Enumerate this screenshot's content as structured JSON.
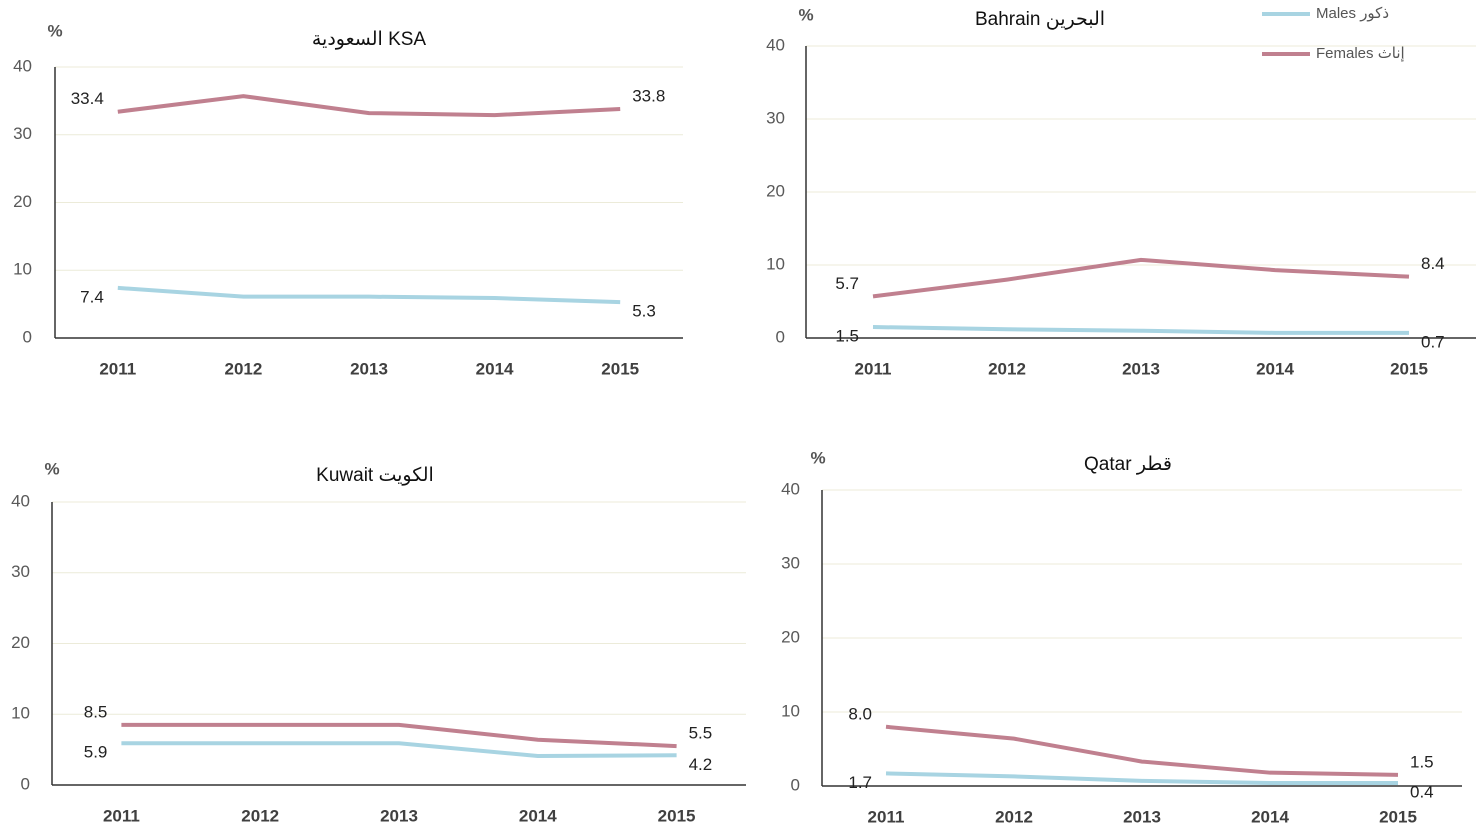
{
  "chart_data": [
    {
      "type": "line",
      "title": "السعودية KSA",
      "y_label": "%",
      "categories": [
        "2011",
        "2012",
        "2013",
        "2014",
        "2015"
      ],
      "series": [
        {
          "name": "Males ذكور",
          "color": "#a8d4e2",
          "values": [
            7.4,
            6.1,
            6.1,
            5.9,
            5.3
          ],
          "value_labels": [
            "7.4",
            null,
            null,
            null,
            "5.3"
          ]
        },
        {
          "name": "Females إناث",
          "color": "#c0808f",
          "values": [
            33.4,
            35.7,
            33.2,
            32.9,
            33.8
          ],
          "value_labels": [
            "33.4",
            null,
            null,
            null,
            "33.8"
          ]
        }
      ],
      "ylim": [
        0,
        40
      ],
      "yticks": [
        0,
        10,
        20,
        30,
        40
      ],
      "grid": true
    },
    {
      "type": "line",
      "title": "Bahrain البحرين",
      "y_label": "%",
      "categories": [
        "2011",
        "2012",
        "2013",
        "2014",
        "2015"
      ],
      "series": [
        {
          "name": "Males ذكور",
          "color": "#a8d4e2",
          "values": [
            1.5,
            1.2,
            1.0,
            0.7,
            0.7
          ],
          "value_labels": [
            "1.5",
            null,
            null,
            null,
            "0.7"
          ]
        },
        {
          "name": "Females إناث",
          "color": "#c0808f",
          "values": [
            5.7,
            8.0,
            10.7,
            9.3,
            8.4
          ],
          "value_labels": [
            "5.7",
            null,
            null,
            null,
            "8.4"
          ]
        }
      ],
      "ylim": [
        0,
        40
      ],
      "yticks": [
        0,
        10,
        20,
        30,
        40
      ],
      "grid": true,
      "legend": "upper right"
    },
    {
      "type": "line",
      "title": "Kuwait الكويت",
      "y_label": "%",
      "categories": [
        "2011",
        "2012",
        "2013",
        "2014",
        "2015"
      ],
      "series": [
        {
          "name": "Males ذكور",
          "color": "#a8d4e2",
          "values": [
            5.9,
            5.9,
            5.9,
            4.1,
            4.2
          ],
          "value_labels": [
            "5.9",
            null,
            null,
            null,
            "4.2"
          ]
        },
        {
          "name": "Females إناث",
          "color": "#c0808f",
          "values": [
            8.5,
            8.5,
            8.5,
            6.4,
            5.5
          ],
          "value_labels": [
            "8.5",
            null,
            null,
            null,
            "5.5"
          ]
        }
      ],
      "ylim": [
        0,
        40
      ],
      "yticks": [
        0,
        10,
        20,
        30,
        40
      ],
      "grid": true
    },
    {
      "type": "line",
      "title": "Qatar قطر",
      "y_label": "%",
      "categories": [
        "2011",
        "2012",
        "2013",
        "2014",
        "2015"
      ],
      "series": [
        {
          "name": "Males ذكور",
          "color": "#a8d4e2",
          "values": [
            1.7,
            1.3,
            0.7,
            0.4,
            0.4
          ],
          "value_labels": [
            "1.7",
            null,
            null,
            null,
            "0.4"
          ]
        },
        {
          "name": "Females إناث",
          "color": "#c0808f",
          "values": [
            8.0,
            6.4,
            3.3,
            1.8,
            1.5
          ],
          "value_labels": [
            "8.0",
            null,
            null,
            null,
            "1.5"
          ]
        }
      ],
      "ylim": [
        0,
        40
      ],
      "yticks": [
        0,
        10,
        20,
        30,
        40
      ],
      "grid": true
    }
  ]
}
